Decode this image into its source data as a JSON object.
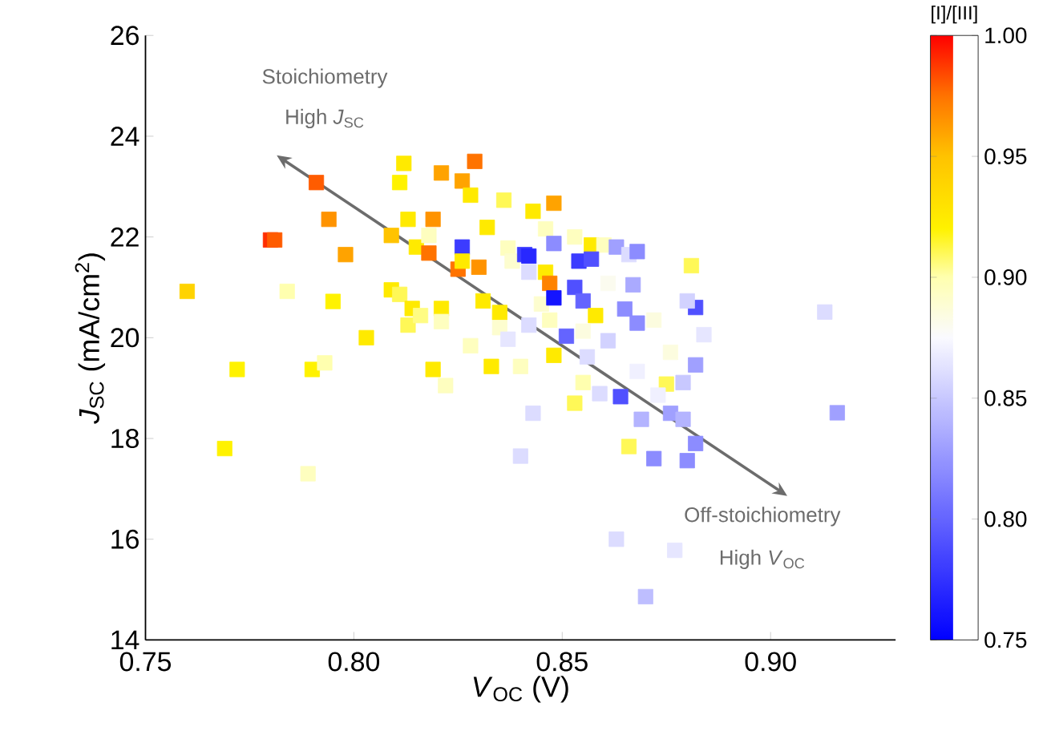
{
  "chart_data": {
    "type": "scatter",
    "xlabel": "*V*$_{OC}$ (V)",
    "ylabel": "*J*$_{SC}$ (mA/cm$^{2}$)",
    "clabel": "[I]/[III]",
    "annotations": [
      "Stoichiometry",
      "High *J*$_{SC}$",
      "Off-stoichiometry",
      "High *V*$_{OC}$"
    ],
    "marker": "square",
    "xlim": [
      0.75,
      0.93
    ],
    "ylim": [
      14,
      26
    ],
    "xticks": [
      {
        "value": 0.75,
        "label": "0.75"
      },
      {
        "value": 0.8,
        "label": "0.80"
      },
      {
        "value": 0.85,
        "label": "0.85"
      },
      {
        "value": 0.9,
        "label": "0.90"
      }
    ],
    "yticks": [
      14,
      16,
      18,
      20,
      22,
      24,
      26
    ],
    "clim": [
      0.75,
      1.0
    ],
    "cticks": [
      {
        "value": 0.75,
        "label": "0.75"
      },
      {
        "value": 0.8,
        "label": "0.80"
      },
      {
        "value": 0.85,
        "label": "0.85"
      },
      {
        "value": 0.9,
        "label": "0.90"
      },
      {
        "value": 0.95,
        "label": "0.95"
      },
      {
        "value": 1.0,
        "label": "1.00"
      }
    ],
    "x": [
      0.76,
      0.769,
      0.772,
      0.78,
      0.781,
      0.784,
      0.789,
      0.79,
      0.791,
      0.793,
      0.794,
      0.795,
      0.798,
      0.803,
      0.809,
      0.809,
      0.811,
      0.811,
      0.812,
      0.813,
      0.813,
      0.814,
      0.815,
      0.816,
      0.818,
      0.818,
      0.819,
      0.819,
      0.821,
      0.821,
      0.821,
      0.822,
      0.826,
      0.825,
      0.826,
      0.826,
      0.828,
      0.829,
      0.828,
      0.836,
      0.832,
      0.83,
      0.831,
      0.833,
      0.835,
      0.835,
      0.837,
      0.84,
      0.837,
      0.838,
      0.843,
      0.841,
      0.842,
      0.842,
      0.842,
      0.843,
      0.84,
      0.845,
      0.848,
      0.846,
      0.848,
      0.853,
      0.857,
      0.86,
      0.863,
      0.866,
      0.868,
      0.854,
      0.857,
      0.846,
      0.847,
      0.848,
      0.853,
      0.855,
      0.861,
      0.867,
      0.865,
      0.868,
      0.882,
      0.88,
      0.858,
      0.847,
      0.851,
      0.855,
      0.861,
      0.856,
      0.848,
      0.872,
      0.876,
      0.884,
      0.868,
      0.882,
      0.879,
      0.875,
      0.855,
      0.859,
      0.864,
      0.873,
      0.853,
      0.869,
      0.876,
      0.879,
      0.882,
      0.88,
      0.872,
      0.866,
      0.913,
      0.916,
      0.863,
      0.877,
      0.87,
      0.881
    ],
    "values": [
      20.92,
      17.8,
      19.37,
      21.94,
      21.94,
      20.92,
      17.3,
      19.37,
      23.08,
      19.5,
      22.35,
      20.72,
      21.65,
      20.0,
      22.03,
      20.95,
      20.86,
      23.08,
      23.46,
      22.35,
      20.25,
      20.58,
      21.8,
      20.44,
      22.03,
      21.68,
      22.35,
      19.37,
      20.58,
      20.32,
      23.27,
      19.05,
      21.8,
      21.36,
      21.52,
      23.11,
      22.83,
      23.5,
      19.84,
      22.73,
      22.19,
      21.4,
      20.73,
      19.43,
      20.5,
      20.2,
      19.97,
      19.43,
      21.78,
      21.52,
      22.51,
      21.65,
      21.62,
      21.3,
      20.25,
      18.5,
      17.65,
      20.67,
      22.67,
      22.16,
      21.87,
      22.0,
      21.84,
      21.84,
      21.8,
      21.65,
      21.71,
      21.52,
      21.56,
      21.3,
      21.08,
      20.79,
      21.0,
      20.73,
      21.08,
      21.05,
      20.57,
      20.29,
      20.6,
      20.73,
      20.44,
      20.35,
      20.03,
      20.13,
      19.94,
      19.62,
      19.65,
      20.35,
      19.71,
      20.06,
      19.33,
      19.46,
      19.11,
      19.08,
      19.11,
      18.89,
      18.83,
      18.86,
      18.7,
      18.38,
      18.5,
      18.38,
      17.9,
      17.56,
      17.6,
      17.84,
      20.51,
      18.51,
      16.0,
      15.78,
      14.86,
      21.43
    ],
    "cvalues": [
      0.94,
      0.92,
      0.92,
      0.99,
      0.98,
      0.9,
      0.895,
      0.92,
      0.98,
      0.9,
      0.965,
      0.92,
      0.96,
      0.925,
      0.95,
      0.925,
      0.91,
      0.92,
      0.925,
      0.925,
      0.91,
      0.925,
      0.925,
      0.905,
      0.895,
      0.975,
      0.965,
      0.925,
      0.925,
      0.895,
      0.96,
      0.895,
      0.78,
      0.975,
      0.925,
      0.96,
      0.925,
      0.975,
      0.895,
      0.91,
      0.925,
      0.965,
      0.925,
      0.925,
      0.925,
      0.89,
      0.865,
      0.895,
      0.895,
      0.89,
      0.925,
      0.78,
      0.77,
      0.86,
      0.86,
      0.86,
      0.86,
      0.89,
      0.96,
      0.895,
      0.82,
      0.895,
      0.925,
      0.895,
      0.83,
      0.86,
      0.82,
      0.78,
      0.79,
      0.925,
      0.97,
      0.76,
      0.79,
      0.8,
      0.88,
      0.835,
      0.82,
      0.82,
      0.79,
      0.855,
      0.925,
      0.895,
      0.8,
      0.885,
      0.855,
      0.86,
      0.925,
      0.885,
      0.885,
      0.865,
      0.87,
      0.83,
      0.85,
      0.91,
      0.9,
      0.86,
      0.79,
      0.87,
      0.91,
      0.84,
      0.83,
      0.84,
      0.82,
      0.82,
      0.82,
      0.91,
      0.86,
      0.83,
      0.86,
      0.865,
      0.845,
      0.91
    ]
  }
}
